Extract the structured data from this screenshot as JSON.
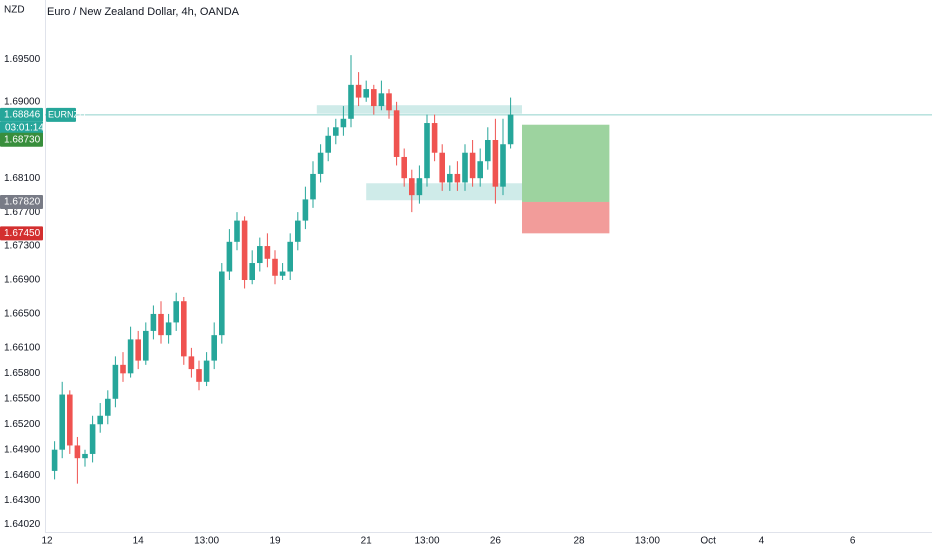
{
  "chart_data": {
    "type": "candlestick",
    "title": "Euro / New Zealand Dollar, 4h, OANDA",
    "currency": "NZD",
    "symbol": "EURNZD",
    "up_color": "#26a69a",
    "down_color": "#ef5350",
    "categories": [
      "12",
      null,
      null,
      null,
      null,
      null,
      null,
      null,
      null,
      null,
      null,
      null,
      "14",
      null,
      null,
      null,
      null,
      null,
      null,
      null,
      null,
      "13:00",
      null,
      null,
      null,
      null,
      null,
      null,
      null,
      null,
      "19",
      null,
      null,
      null,
      null,
      null,
      null,
      null,
      null,
      null,
      null,
      null,
      "21",
      null,
      null,
      null,
      null,
      null,
      null,
      null,
      "13:00",
      null,
      null,
      null,
      null,
      null,
      null,
      null,
      null,
      "26",
      null,
      null,
      null,
      null,
      null,
      null,
      null,
      null,
      null,
      null,
      "28",
      null,
      null,
      null,
      null,
      null,
      null,
      null,
      null,
      "13:00",
      null,
      null,
      null,
      null,
      null,
      null,
      null,
      "Oct",
      null,
      null,
      null,
      null,
      null,
      null,
      "4",
      null,
      null,
      null,
      null,
      null,
      null,
      null,
      null,
      null,
      null,
      null,
      "6",
      null,
      null,
      null,
      null,
      null,
      null,
      null,
      null,
      null,
      null
    ],
    "open": [
      null,
      1.6465,
      1.649,
      1.6555,
      1.6495,
      1.648,
      1.6485,
      1.652,
      1.653,
      1.655,
      1.659,
      1.658,
      1.662,
      1.6595,
      1.663,
      1.665,
      1.6625,
      1.664,
      1.6665,
      1.66,
      1.6585,
      1.657,
      1.6595,
      1.6625,
      1.67,
      1.6735,
      1.676,
      1.669,
      1.671,
      1.673,
      1.6715,
      1.6695,
      1.67,
      1.6735,
      1.676,
      1.6785,
      1.6815,
      1.684,
      1.686,
      1.687,
      1.688,
      1.692,
      1.6905,
      1.6915,
      1.6895,
      1.691,
      1.689,
      1.6835,
      1.681,
      1.679,
      1.681,
      1.6875,
      1.684,
      1.6805,
      1.6815,
      1.6805,
      1.684,
      1.681,
      1.683,
      1.6855,
      1.68,
      1.685,
      null,
      null,
      null,
      null,
      null,
      null,
      null,
      null,
      null,
      null,
      null,
      null,
      null,
      null,
      null,
      null,
      null,
      null,
      null,
      null,
      null,
      null,
      null,
      null,
      null,
      null,
      null,
      null,
      null,
      null,
      null,
      null,
      null,
      null,
      null,
      null,
      null,
      null,
      null,
      null,
      null,
      null,
      null,
      null,
      null,
      null,
      null,
      null,
      null,
      null,
      null,
      null,
      null,
      null,
      null
    ],
    "high": [
      null,
      1.65,
      1.657,
      1.656,
      1.6505,
      1.649,
      1.653,
      1.6545,
      1.656,
      1.66,
      1.6605,
      1.6635,
      1.663,
      1.664,
      1.666,
      1.6665,
      1.665,
      1.6675,
      1.667,
      1.661,
      1.6595,
      1.6605,
      1.664,
      1.671,
      1.675,
      1.677,
      1.6765,
      1.6725,
      1.674,
      1.6745,
      1.6725,
      1.671,
      1.6745,
      1.677,
      1.68,
      1.683,
      1.685,
      1.687,
      1.688,
      1.6895,
      1.6955,
      1.6935,
      1.6925,
      1.692,
      1.6925,
      1.6915,
      1.69,
      1.6845,
      1.682,
      1.6825,
      1.6885,
      1.6885,
      1.685,
      1.6825,
      1.683,
      1.685,
      1.6855,
      1.6845,
      1.687,
      1.688,
      1.688,
      1.6905,
      null,
      null,
      null,
      null,
      null,
      null,
      null,
      null,
      null,
      null,
      null,
      null,
      null,
      null,
      null,
      null,
      null,
      null,
      null,
      null,
      null,
      null,
      null,
      null,
      null,
      null,
      null,
      null,
      null,
      null,
      null,
      null,
      null,
      null,
      null,
      null,
      null,
      null,
      null,
      null,
      null,
      null,
      null,
      null,
      null,
      null,
      null,
      null,
      null,
      null,
      null,
      null,
      null,
      null,
      null
    ],
    "low": [
      null,
      1.6455,
      1.648,
      1.6485,
      1.645,
      1.647,
      1.6475,
      1.651,
      1.652,
      1.654,
      1.657,
      1.6575,
      1.6585,
      1.659,
      1.662,
      1.6615,
      1.6615,
      1.663,
      1.659,
      1.6575,
      1.656,
      1.6565,
      1.6585,
      1.6615,
      1.669,
      1.6725,
      1.668,
      1.6685,
      1.67,
      1.6705,
      1.6685,
      1.669,
      1.669,
      1.6725,
      1.675,
      1.6775,
      1.6805,
      1.683,
      1.685,
      1.686,
      1.687,
      1.6895,
      1.69,
      1.6885,
      1.689,
      1.688,
      1.6825,
      1.68,
      1.677,
      1.678,
      1.68,
      1.683,
      1.6795,
      1.6795,
      1.6795,
      1.6795,
      1.68,
      1.68,
      1.682,
      1.678,
      1.679,
      1.6845,
      null,
      null,
      null,
      null,
      null,
      null,
      null,
      null,
      null,
      null,
      null,
      null,
      null,
      null,
      null,
      null,
      null,
      null,
      null,
      null,
      null,
      null,
      null,
      null,
      null,
      null,
      null,
      null,
      null,
      null,
      null,
      null,
      null,
      null,
      null,
      null,
      null,
      null,
      null,
      null,
      null,
      null,
      null,
      null,
      null,
      null,
      null,
      null,
      null,
      null,
      null,
      null,
      null,
      null,
      null
    ],
    "close": [
      null,
      1.649,
      1.6555,
      1.6495,
      1.648,
      1.6485,
      1.652,
      1.653,
      1.655,
      1.659,
      1.658,
      1.662,
      1.6595,
      1.663,
      1.665,
      1.6625,
      1.664,
      1.6665,
      1.66,
      1.6585,
      1.657,
      1.6595,
      1.6625,
      1.67,
      1.6735,
      1.676,
      1.669,
      1.671,
      1.673,
      1.6715,
      1.6695,
      1.67,
      1.6735,
      1.676,
      1.6785,
      1.6815,
      1.684,
      1.686,
      1.687,
      1.688,
      1.692,
      1.6905,
      1.6915,
      1.6895,
      1.691,
      1.689,
      1.6835,
      1.681,
      1.679,
      1.681,
      1.6875,
      1.684,
      1.6805,
      1.6815,
      1.6805,
      1.684,
      1.681,
      1.683,
      1.6855,
      1.68,
      1.685,
      1.6885,
      null,
      null,
      null,
      null,
      null,
      null,
      null,
      null,
      null,
      null,
      null,
      null,
      null,
      null,
      null,
      null,
      null,
      null,
      null,
      null,
      null,
      null,
      null,
      null,
      null,
      null,
      null,
      null,
      null,
      null,
      null,
      null,
      null,
      null,
      null,
      null,
      null,
      null,
      null,
      null,
      null,
      null,
      null,
      null,
      null,
      null,
      null,
      null,
      null,
      null,
      null,
      null,
      null,
      null,
      null
    ],
    "ylim": [
      1.6393,
      1.702
    ],
    "yticks": [
      {
        "value": 1.695,
        "label": "1.69500"
      },
      {
        "value": 1.69,
        "label": "1.69000"
      },
      {
        "value": 1.681,
        "label": "1.68100"
      },
      {
        "value": 1.677,
        "label": "1.67700"
      },
      {
        "value": 1.673,
        "label": "1.67300"
      },
      {
        "value": 1.669,
        "label": "1.66900"
      },
      {
        "value": 1.665,
        "label": "1.66500"
      },
      {
        "value": 1.661,
        "label": "1.66100"
      },
      {
        "value": 1.658,
        "label": "1.65800"
      },
      {
        "value": 1.655,
        "label": "1.65500"
      },
      {
        "value": 1.652,
        "label": "1.65200"
      },
      {
        "value": 1.649,
        "label": "1.64900"
      },
      {
        "value": 1.646,
        "label": "1.64600"
      },
      {
        "value": 1.643,
        "label": "1.64300"
      },
      {
        "value": 1.6402,
        "label": "1.64020"
      }
    ],
    "last_price": {
      "value": 1.68846,
      "label": "1.68846"
    },
    "countdown": "03:01:14",
    "position": {
      "target": {
        "value": 1.6873,
        "label": "1.68730"
      },
      "entry": {
        "value": 1.6782,
        "label": "1.67820"
      },
      "stop": {
        "value": 1.6745,
        "label": "1.67450"
      }
    },
    "zones": [
      {
        "top": 1.6896,
        "bottom": 1.6886
      },
      {
        "top": 1.6804,
        "bottom": 1.6784
      }
    ]
  }
}
